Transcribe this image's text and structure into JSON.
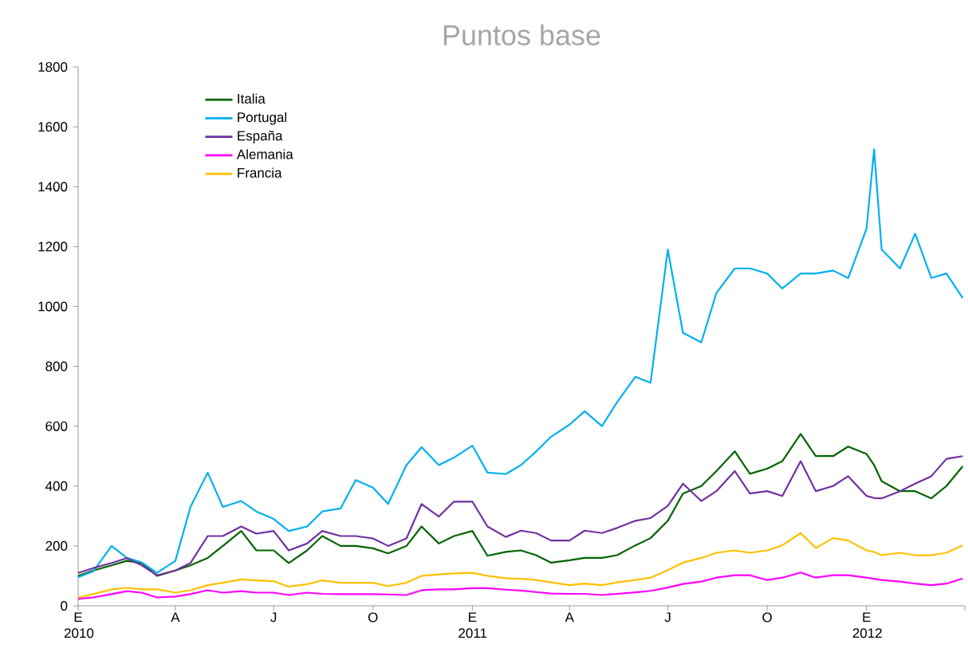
{
  "chart_data": {
    "type": "line",
    "title": "Puntos base",
    "x": [
      "2010-01-01",
      "2010-01-15",
      "2010-02-01",
      "2010-02-15",
      "2010-03-01",
      "2010-03-15",
      "2010-04-01",
      "2010-04-15",
      "2010-05-01",
      "2010-05-15",
      "2010-06-01",
      "2010-06-15",
      "2010-07-01",
      "2010-07-15",
      "2010-08-01",
      "2010-08-15",
      "2010-09-01",
      "2010-09-15",
      "2010-10-01",
      "2010-10-15",
      "2010-11-01",
      "2010-11-15",
      "2010-12-01",
      "2010-12-15",
      "2011-01-01",
      "2011-01-15",
      "2011-02-01",
      "2011-02-15",
      "2011-03-01",
      "2011-03-15",
      "2011-04-01",
      "2011-04-15",
      "2011-05-01",
      "2011-05-15",
      "2011-06-01",
      "2011-06-15",
      "2011-07-01",
      "2011-07-15",
      "2011-08-01",
      "2011-08-15",
      "2011-09-01",
      "2011-09-15",
      "2011-10-01",
      "2011-10-15",
      "2011-11-01",
      "2011-11-15",
      "2011-12-01",
      "2011-12-15",
      "2012-01-01",
      "2012-01-08",
      "2012-01-15",
      "2012-02-01",
      "2012-02-15",
      "2012-03-01",
      "2012-03-15",
      "2012-03-30"
    ],
    "series": [
      {
        "name": "Italia",
        "color": "#006400",
        "values": [
          100,
          118,
          135,
          150,
          143,
          100,
          118,
          135,
          160,
          200,
          250,
          185,
          185,
          143,
          185,
          233,
          200,
          200,
          192,
          175,
          200,
          265,
          208,
          233,
          250,
          167,
          180,
          185,
          169,
          144,
          152,
          160,
          160,
          169,
          202,
          226,
          284,
          375,
          400,
          450,
          516,
          441,
          458,
          483,
          574,
          500,
          500,
          532,
          507,
          470,
          416,
          383,
          383,
          359,
          400,
          466
        ]
      },
      {
        "name": "Portugal",
        "color": "#00b0f0",
        "values": [
          95,
          115,
          200,
          160,
          145,
          110,
          150,
          330,
          445,
          330,
          350,
          315,
          290,
          250,
          265,
          315,
          325,
          420,
          395,
          340,
          470,
          530,
          470,
          495,
          535,
          445,
          440,
          470,
          515,
          565,
          605,
          650,
          600,
          680,
          765,
          745,
          1190,
          912,
          880,
          1045,
          1127,
          1127,
          1110,
          1060,
          1110,
          1110,
          1120,
          1095,
          1260,
          1525,
          1190,
          1127,
          1243,
          1095,
          1110,
          1028
        ]
      },
      {
        "name": "España",
        "color": "#7030a0",
        "values": [
          110,
          126,
          143,
          159,
          135,
          102,
          118,
          143,
          233,
          233,
          265,
          241,
          250,
          185,
          208,
          250,
          233,
          233,
          225,
          200,
          225,
          340,
          298,
          348,
          348,
          265,
          230,
          251,
          243,
          218,
          218,
          251,
          243,
          260,
          284,
          293,
          334,
          408,
          350,
          383,
          450,
          375,
          383,
          367,
          483,
          383,
          400,
          433,
          367,
          360,
          359,
          383,
          408,
          433,
          491,
          500
        ]
      },
      {
        "name": "Alemania",
        "color": "#ff00ff",
        "values": [
          23,
          28,
          39,
          49,
          44,
          28,
          31,
          39,
          52,
          44,
          49,
          44,
          44,
          36,
          44,
          40,
          39,
          39,
          39,
          38,
          36,
          52,
          55,
          55,
          59,
          59,
          54,
          51,
          46,
          41,
          40,
          40,
          36,
          40,
          45,
          50,
          61,
          73,
          81,
          94,
          102,
          102,
          86,
          94,
          111,
          94,
          102,
          102,
          94,
          90,
          86,
          81,
          74,
          69,
          74,
          91
        ]
      },
      {
        "name": "Francia",
        "color": "#ffc000",
        "values": [
          28,
          39,
          55,
          60,
          55,
          55,
          44,
          52,
          69,
          77,
          88,
          85,
          82,
          64,
          72,
          85,
          77,
          77,
          77,
          66,
          77,
          100,
          105,
          108,
          110,
          100,
          92,
          90,
          86,
          78,
          69,
          74,
          69,
          78,
          86,
          94,
          119,
          144,
          160,
          177,
          185,
          177,
          185,
          202,
          243,
          193,
          226,
          218,
          185,
          180,
          169,
          177,
          169,
          169,
          177,
          202
        ]
      }
    ],
    "xlim": [
      "2010-01-01",
      "2012-04-01"
    ],
    "xticks": [
      {
        "value": "2010-01-01",
        "label": "E 2010"
      },
      {
        "value": "2010-04-01",
        "label": "A"
      },
      {
        "value": "2010-07-01",
        "label": "J"
      },
      {
        "value": "2010-10-01",
        "label": "O"
      },
      {
        "value": "2011-01-01",
        "label": "E 2011"
      },
      {
        "value": "2011-04-01",
        "label": "A"
      },
      {
        "value": "2011-07-01",
        "label": "J"
      },
      {
        "value": "2011-10-01",
        "label": "O"
      },
      {
        "value": "2012-01-01",
        "label": "E 2012"
      },
      {
        "value": "2012-04-01",
        "label": null
      }
    ],
    "ylim": [
      0,
      1800
    ],
    "yticks": [
      0,
      200,
      400,
      600,
      800,
      1000,
      1200,
      1400,
      1600,
      1800
    ],
    "grid": false,
    "legend": "top left",
    "marker": "none",
    "line_style": "solid"
  }
}
